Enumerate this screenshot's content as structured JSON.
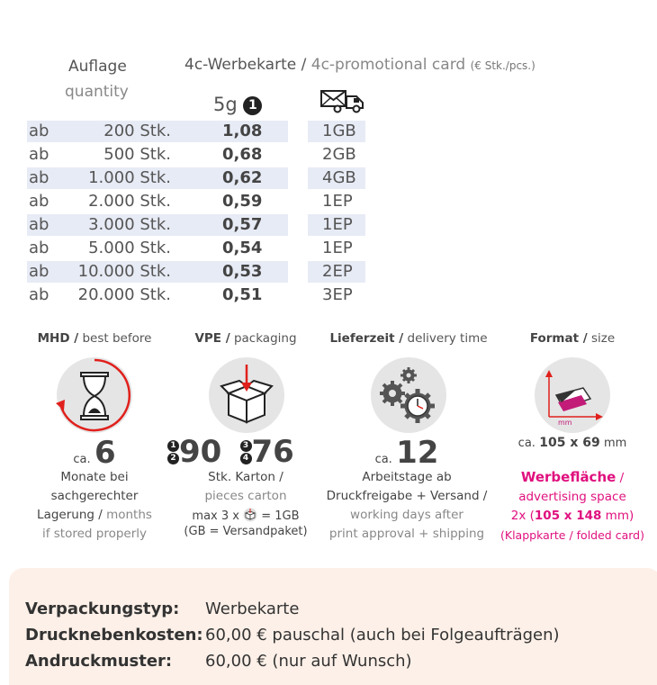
{
  "table": {
    "quantity_label_de": "Auflage",
    "quantity_label_en": "quantity",
    "product_de": "4c-Werbekarte",
    "product_en": "4c-promotional card",
    "price_unit": "(€ Stk./pcs.)",
    "weight_col": "5g",
    "weight_note_number": "1",
    "shipping_icon": "truck-envelope-icon",
    "rows": [
      {
        "prefix": "ab",
        "qty": "200 Stk.",
        "price": "1,08",
        "ship": "1GB"
      },
      {
        "prefix": "ab",
        "qty": "500 Stk.",
        "price": "0,68",
        "ship": "2GB"
      },
      {
        "prefix": "ab",
        "qty": "1.000 Stk.",
        "price": "0,62",
        "ship": "4GB"
      },
      {
        "prefix": "ab",
        "qty": "2.000 Stk.",
        "price": "0,59",
        "ship": "1EP"
      },
      {
        "prefix": "ab",
        "qty": "3.000 Stk.",
        "price": "0,57",
        "ship": "1EP"
      },
      {
        "prefix": "ab",
        "qty": "5.000 Stk.",
        "price": "0,54",
        "ship": "1EP"
      },
      {
        "prefix": "ab",
        "qty": "10.000 Stk.",
        "price": "0,53",
        "ship": "2EP"
      },
      {
        "prefix": "ab",
        "qty": "20.000 Stk.",
        "price": "0,51",
        "ship": "3EP"
      }
    ]
  },
  "info": {
    "mhd": {
      "title_de": "MHD /",
      "title_en": " best before",
      "icon": "hourglass-icon",
      "ca": "ca.",
      "value": "6",
      "l1": "Monate bei",
      "l2": "sachgerechter",
      "l3a": "Lagerung /",
      "l3b": " months",
      "l4": "if stored properly"
    },
    "vpe": {
      "title_de": "VPE /",
      "title_en": " packaging",
      "icon": "box-icon",
      "n1": "1",
      "n2": "2",
      "value_a": "90",
      "n3": "3",
      "n4": "4",
      "value_b": "76",
      "l1": "Stk. Karton /",
      "l2": "pieces carton",
      "l3a": "max 3 x",
      "l3b": "= 1GB",
      "l4": "(GB = Versandpaket)"
    },
    "delivery": {
      "title_de": "Lieferzeit /",
      "title_en": " delivery time",
      "icon": "gears-clock-icon",
      "ca": "ca.",
      "value": "12",
      "l1": "Arbeitstage ab",
      "l2": "Druckfreigabe + Versand /",
      "l3": "working days after",
      "l4": "print approval + shipping"
    },
    "format": {
      "title_de": "Format /",
      "title_en": " size",
      "icon": "format-size-icon",
      "icon_label": "mm",
      "ca": "ca.",
      "value": "105 x 69",
      "unit": "mm",
      "adv_de": "Werbefläche",
      "adv_slash": " /",
      "adv_en": "advertising space",
      "adv_size_a": "2x (",
      "adv_size_b": "105 x 148",
      "adv_size_c": " mm)",
      "adv_note": "(Klappkarte / folded card)"
    }
  },
  "details": {
    "pack_key": "Verpackungstyp:",
    "pack_val": "Werbekarte",
    "cost_key": "Drucknebenkosten:",
    "cost_val": "60,00 € pauschal (auch bei Folgeaufträgen)",
    "proof_key": "Andruckmuster:",
    "proof_val": "60,00 € (nur auf Wunsch)"
  },
  "colors": {
    "accent": "#e0107e",
    "row_band": "#e7ebf5",
    "bottom_bg": "#fdf0e8",
    "arrow_red": "#e0201c"
  }
}
